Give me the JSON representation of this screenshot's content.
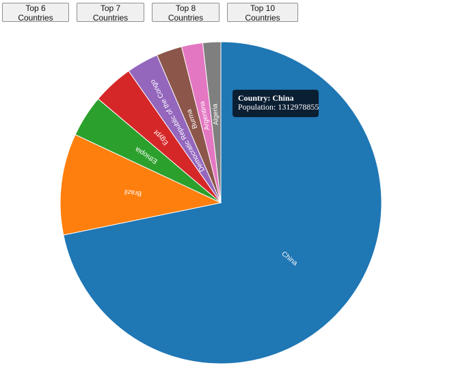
{
  "buttons": [
    {
      "label": "Top 6 Countries"
    },
    {
      "label": "Top 7 Countries"
    },
    {
      "label": "Top 8 Countries"
    },
    {
      "label": "Top 10 Countries"
    }
  ],
  "tooltip": {
    "country_label": "Country: China",
    "population_label": "Population: 1312978855",
    "background": "#0b1f33"
  },
  "chart_data": {
    "type": "pie",
    "categories": [
      "China",
      "Brazil",
      "Ethiopia",
      "Egypt",
      "Democratic Republic of the Congo",
      "Burma",
      "Argentina",
      "Algeria"
    ],
    "values": [
      1312978855,
      186000000,
      77000000,
      75000000,
      59000000,
      47000000,
      39000000,
      33000000
    ],
    "colors": [
      "#1f77b4",
      "#ff7f0e",
      "#2ca02c",
      "#d62728",
      "#9467bd",
      "#8c564b",
      "#e377c2",
      "#7f7f7f"
    ],
    "title": "",
    "legend": "none"
  }
}
